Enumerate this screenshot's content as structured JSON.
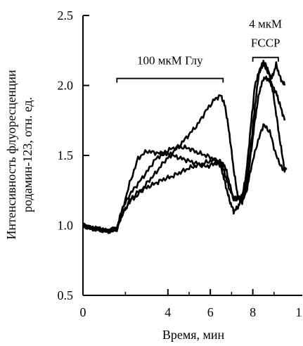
{
  "chart_data": {
    "type": "line",
    "xlabel": "Время, мин",
    "ylabel_line1": "Интенсивность флуоресценции",
    "ylabel_line2": "родамин-123, отн. ед.",
    "xlim": [
      0,
      10
    ],
    "ylim": [
      0.5,
      2.5
    ],
    "x_ticks": [
      0,
      4,
      6,
      8
    ],
    "x_tick_labels": [
      "0",
      "4",
      "6",
      "8"
    ],
    "x_edge_label": "1",
    "y_ticks": [
      0.5,
      1.0,
      1.5,
      2.0,
      2.5
    ],
    "y_tick_labels": [
      "0.5",
      "1.0",
      "1.5",
      "2.0",
      "2.5"
    ],
    "grid": false,
    "annotations": [
      {
        "text": "100 мкМ Глу",
        "x_start": 1.6,
        "x_end": 6.6,
        "y": 2.05
      },
      {
        "text_line1": "4 мкМ",
        "text_line2": "FCCP",
        "x_start": 8.0,
        "x_end": 9.2,
        "y": 2.2
      }
    ],
    "series": [
      {
        "x": [
          0,
          0.4,
          0.8,
          1.2,
          1.6,
          1.8,
          2.2,
          2.6,
          3.0,
          3.4,
          3.8,
          4.2,
          4.6,
          5.0,
          5.4,
          5.8,
          6.2,
          6.5,
          6.7,
          6.9,
          7.1,
          7.3,
          7.5,
          7.7,
          7.9,
          8.2,
          8.5,
          8.8,
          9.1,
          9.4,
          9.6
        ],
        "y": [
          1.0,
          0.98,
          0.97,
          0.96,
          0.97,
          1.08,
          1.3,
          1.48,
          1.53,
          1.52,
          1.51,
          1.5,
          1.48,
          1.46,
          1.44,
          1.42,
          1.44,
          1.45,
          1.42,
          1.3,
          1.18,
          1.2,
          1.2,
          1.24,
          1.4,
          1.58,
          1.72,
          1.67,
          1.5,
          1.4,
          1.4
        ]
      },
      {
        "x": [
          0,
          0.4,
          0.8,
          1.2,
          1.6,
          1.8,
          2.2,
          2.6,
          3.0,
          3.4,
          3.8,
          4.2,
          4.6,
          5.0,
          5.4,
          5.8,
          6.2,
          6.5,
          6.7,
          6.9,
          7.1,
          7.3,
          7.5,
          7.7,
          7.9,
          8.1,
          8.3,
          8.5,
          8.7,
          8.9,
          9.1,
          9.3,
          9.5
        ],
        "y": [
          1.0,
          0.98,
          0.97,
          0.96,
          0.98,
          1.06,
          1.18,
          1.24,
          1.27,
          1.3,
          1.33,
          1.35,
          1.38,
          1.41,
          1.43,
          1.45,
          1.47,
          1.45,
          1.36,
          1.26,
          1.2,
          1.19,
          1.21,
          1.3,
          1.55,
          1.85,
          2.1,
          2.15,
          2.1,
          2.05,
          2.15,
          2.05,
          2.0
        ]
      },
      {
        "x": [
          0,
          0.4,
          0.8,
          1.2,
          1.6,
          1.8,
          2.2,
          2.6,
          3.0,
          3.4,
          3.8,
          4.2,
          4.6,
          5.0,
          5.4,
          5.8,
          6.2,
          6.5,
          6.7,
          6.9,
          7.1,
          7.3,
          7.5,
          7.7,
          7.9,
          8.1,
          8.3,
          8.5,
          8.7,
          8.9,
          9.1,
          9.3,
          9.5
        ],
        "y": [
          1.0,
          0.98,
          0.97,
          0.96,
          0.98,
          1.06,
          1.17,
          1.22,
          1.3,
          1.37,
          1.45,
          1.52,
          1.58,
          1.65,
          1.72,
          1.82,
          1.9,
          1.93,
          1.85,
          1.65,
          1.4,
          1.2,
          1.16,
          1.26,
          1.5,
          1.75,
          1.95,
          2.05,
          2.05,
          2.0,
          1.95,
          1.85,
          1.75
        ]
      },
      {
        "x": [
          0,
          0.4,
          0.8,
          1.2,
          1.6,
          1.8,
          2.2,
          2.6,
          3.0,
          3.4,
          3.8,
          4.2,
          4.6,
          5.0,
          5.4,
          5.8,
          6.2,
          6.5,
          6.7,
          6.9,
          7.1,
          7.3,
          7.5,
          7.7,
          7.9,
          8.1,
          8.3,
          8.5,
          8.7,
          8.9,
          9.1,
          9.3,
          9.5
        ],
        "y": [
          1.0,
          0.98,
          0.97,
          0.96,
          0.97,
          1.1,
          1.22,
          1.3,
          1.38,
          1.47,
          1.52,
          1.55,
          1.56,
          1.55,
          1.52,
          1.5,
          1.47,
          1.42,
          1.3,
          1.18,
          1.1,
          1.13,
          1.2,
          1.38,
          1.7,
          2.0,
          2.1,
          2.17,
          2.12,
          2.0,
          1.8,
          1.58,
          1.4
        ]
      }
    ]
  }
}
